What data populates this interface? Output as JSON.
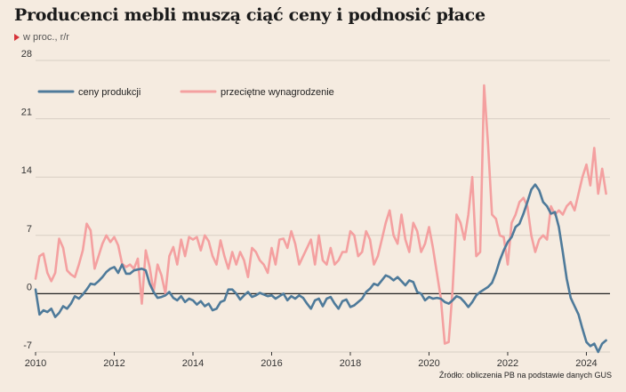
{
  "title": "Producenci mebli muszą ciąć ceny i podnosić płace",
  "subtitle": "w proc., r/r",
  "source": "Źródło: obliczenia PB na podstawie danych GUS",
  "colors": {
    "production": "#4e7a9a",
    "wages": "#f4a0a0",
    "zero_line": "#222222",
    "grid": "#d8cfc4",
    "marker": "#d6333a"
  },
  "chart_data": {
    "type": "line",
    "title": "Producenci mebli muszą ciąć ceny i podnosić płace",
    "subtitle": "w proc., r/r",
    "xlabel": "",
    "ylabel": "",
    "ylim": [
      -7,
      28
    ],
    "xlim": [
      2010,
      2024.6
    ],
    "y_ticks": [
      "28",
      "21",
      "14",
      "7",
      "0",
      "-7"
    ],
    "x_ticks": [
      "2010",
      "2012",
      "2014",
      "2016",
      "2018",
      "2020",
      "2022",
      "2024"
    ],
    "legend_position": "top-left",
    "grid": "horizontal",
    "series": [
      {
        "name": "ceny produkcji",
        "points": [
          [
            2010.0,
            0.5
          ],
          [
            2010.1,
            -2.5
          ],
          [
            2010.2,
            -2
          ],
          [
            2010.3,
            -2.2
          ],
          [
            2010.4,
            -1.8
          ],
          [
            2010.5,
            -2.8
          ],
          [
            2010.6,
            -2.3
          ],
          [
            2010.7,
            -1.5
          ],
          [
            2010.8,
            -1.8
          ],
          [
            2010.9,
            -1.2
          ],
          [
            2011.0,
            -0.3
          ],
          [
            2011.1,
            -0.6
          ],
          [
            2011.2,
            -0.1
          ],
          [
            2011.3,
            0.5
          ],
          [
            2011.4,
            1.2
          ],
          [
            2011.5,
            1.1
          ],
          [
            2011.6,
            1.5
          ],
          [
            2011.7,
            2.0
          ],
          [
            2011.8,
            2.6
          ],
          [
            2011.9,
            3.0
          ],
          [
            2012.0,
            3.2
          ],
          [
            2012.1,
            2.5
          ],
          [
            2012.2,
            3.5
          ],
          [
            2012.3,
            2.4
          ],
          [
            2012.4,
            2.4
          ],
          [
            2012.5,
            2.8
          ],
          [
            2012.6,
            2.9
          ],
          [
            2012.7,
            3.0
          ],
          [
            2012.8,
            2.8
          ],
          [
            2012.9,
            1.2
          ],
          [
            2013.0,
            0.2
          ],
          [
            2013.1,
            -0.5
          ],
          [
            2013.2,
            -0.4
          ],
          [
            2013.3,
            -0.2
          ],
          [
            2013.4,
            0.2
          ],
          [
            2013.5,
            -0.5
          ],
          [
            2013.6,
            -0.8
          ],
          [
            2013.7,
            -0.3
          ],
          [
            2013.8,
            -1.0
          ],
          [
            2013.9,
            -0.6
          ],
          [
            2014.0,
            -0.8
          ],
          [
            2014.1,
            -1.3
          ],
          [
            2014.2,
            -0.9
          ],
          [
            2014.3,
            -1.5
          ],
          [
            2014.4,
            -1.2
          ],
          [
            2014.5,
            -2.0
          ],
          [
            2014.6,
            -1.8
          ],
          [
            2014.7,
            -1.0
          ],
          [
            2014.8,
            -0.8
          ],
          [
            2014.9,
            0.5
          ],
          [
            2015.0,
            0.5
          ],
          [
            2015.1,
            0.0
          ],
          [
            2015.2,
            -0.7
          ],
          [
            2015.3,
            -0.2
          ],
          [
            2015.4,
            0.2
          ],
          [
            2015.5,
            -0.4
          ],
          [
            2015.6,
            -0.2
          ],
          [
            2015.7,
            0.1
          ],
          [
            2015.8,
            -0.1
          ],
          [
            2015.9,
            -0.3
          ],
          [
            2016.0,
            -0.2
          ],
          [
            2016.1,
            -0.6
          ],
          [
            2016.2,
            -0.3
          ],
          [
            2016.3,
            0.0
          ],
          [
            2016.4,
            -0.8
          ],
          [
            2016.5,
            -0.3
          ],
          [
            2016.6,
            -0.6
          ],
          [
            2016.7,
            -0.2
          ],
          [
            2016.8,
            -0.5
          ],
          [
            2016.9,
            -1.2
          ],
          [
            2017.0,
            -1.8
          ],
          [
            2017.1,
            -0.8
          ],
          [
            2017.2,
            -0.6
          ],
          [
            2017.3,
            -1.5
          ],
          [
            2017.4,
            -0.6
          ],
          [
            2017.5,
            -0.4
          ],
          [
            2017.6,
            -1.2
          ],
          [
            2017.7,
            -1.8
          ],
          [
            2017.8,
            -0.9
          ],
          [
            2017.9,
            -0.7
          ],
          [
            2018.0,
            -1.6
          ],
          [
            2018.1,
            -1.4
          ],
          [
            2018.2,
            -1.0
          ],
          [
            2018.3,
            -0.6
          ],
          [
            2018.4,
            0.2
          ],
          [
            2018.5,
            0.6
          ],
          [
            2018.6,
            1.2
          ],
          [
            2018.7,
            1.0
          ],
          [
            2018.8,
            1.6
          ],
          [
            2018.9,
            2.2
          ],
          [
            2019.0,
            2.0
          ],
          [
            2019.1,
            1.6
          ],
          [
            2019.2,
            2.0
          ],
          [
            2019.3,
            1.5
          ],
          [
            2019.4,
            1.0
          ],
          [
            2019.5,
            1.6
          ],
          [
            2019.6,
            1.4
          ],
          [
            2019.7,
            0.2
          ],
          [
            2019.8,
            0.0
          ],
          [
            2019.9,
            -0.8
          ],
          [
            2020.0,
            -0.4
          ],
          [
            2020.1,
            -0.6
          ],
          [
            2020.2,
            -0.5
          ],
          [
            2020.3,
            -0.6
          ],
          [
            2020.4,
            -1.0
          ],
          [
            2020.5,
            -1.2
          ],
          [
            2020.6,
            -0.8
          ],
          [
            2020.7,
            -0.3
          ],
          [
            2020.8,
            -0.5
          ],
          [
            2020.9,
            -1.0
          ],
          [
            2021.0,
            -1.6
          ],
          [
            2021.1,
            -1.0
          ],
          [
            2021.2,
            -0.2
          ],
          [
            2021.3,
            0.2
          ],
          [
            2021.4,
            0.5
          ],
          [
            2021.5,
            0.8
          ],
          [
            2021.6,
            1.3
          ],
          [
            2021.7,
            2.5
          ],
          [
            2021.8,
            4.0
          ],
          [
            2021.9,
            5.2
          ],
          [
            2022.0,
            6.2
          ],
          [
            2022.1,
            6.8
          ],
          [
            2022.2,
            8.0
          ],
          [
            2022.3,
            8.4
          ],
          [
            2022.4,
            9.6
          ],
          [
            2022.5,
            11.0
          ],
          [
            2022.6,
            12.5
          ],
          [
            2022.7,
            13.1
          ],
          [
            2022.8,
            12.4
          ],
          [
            2022.9,
            11.0
          ],
          [
            2023.0,
            10.5
          ],
          [
            2023.1,
            9.6
          ],
          [
            2023.2,
            9.8
          ],
          [
            2023.3,
            8.0
          ],
          [
            2023.4,
            5.0
          ],
          [
            2023.5,
            1.8
          ],
          [
            2023.6,
            -0.5
          ],
          [
            2023.7,
            -1.5
          ],
          [
            2023.8,
            -2.5
          ],
          [
            2023.9,
            -4.2
          ],
          [
            2024.0,
            -5.8
          ],
          [
            2024.1,
            -6.3
          ],
          [
            2024.2,
            -6.0
          ],
          [
            2024.3,
            -7.0
          ],
          [
            2024.4,
            -6.0
          ],
          [
            2024.5,
            -5.6
          ]
        ]
      },
      {
        "name": "przeciętne wynagrodzenie",
        "points": [
          [
            2010.0,
            1.8
          ],
          [
            2010.1,
            4.5
          ],
          [
            2010.2,
            4.8
          ],
          [
            2010.3,
            2.5
          ],
          [
            2010.4,
            1.5
          ],
          [
            2010.5,
            2.5
          ],
          [
            2010.6,
            6.6
          ],
          [
            2010.7,
            5.5
          ],
          [
            2010.8,
            2.8
          ],
          [
            2010.9,
            2.3
          ],
          [
            2011.0,
            2.0
          ],
          [
            2011.1,
            3.5
          ],
          [
            2011.2,
            5.2
          ],
          [
            2011.3,
            8.4
          ],
          [
            2011.4,
            7.6
          ],
          [
            2011.5,
            3.0
          ],
          [
            2011.6,
            4.5
          ],
          [
            2011.7,
            6.0
          ],
          [
            2011.8,
            7.0
          ],
          [
            2011.9,
            6.2
          ],
          [
            2012.0,
            6.8
          ],
          [
            2012.1,
            5.8
          ],
          [
            2012.2,
            3.6
          ],
          [
            2012.3,
            3.2
          ],
          [
            2012.4,
            3.5
          ],
          [
            2012.5,
            3.0
          ],
          [
            2012.6,
            4.2
          ],
          [
            2012.7,
            -1.2
          ],
          [
            2012.8,
            5.2
          ],
          [
            2012.9,
            3.2
          ],
          [
            2013.0,
            0.2
          ],
          [
            2013.1,
            3.5
          ],
          [
            2013.2,
            2.2
          ],
          [
            2013.3,
            0.0
          ],
          [
            2013.4,
            4.5
          ],
          [
            2013.5,
            5.6
          ],
          [
            2013.6,
            3.5
          ],
          [
            2013.7,
            6.5
          ],
          [
            2013.8,
            4.5
          ],
          [
            2013.9,
            6.8
          ],
          [
            2014.0,
            6.5
          ],
          [
            2014.1,
            6.8
          ],
          [
            2014.2,
            5.2
          ],
          [
            2014.3,
            7.0
          ],
          [
            2014.4,
            6.3
          ],
          [
            2014.5,
            4.5
          ],
          [
            2014.6,
            3.5
          ],
          [
            2014.7,
            6.4
          ],
          [
            2014.8,
            4.5
          ],
          [
            2014.9,
            3.0
          ],
          [
            2015.0,
            5.0
          ],
          [
            2015.1,
            3.5
          ],
          [
            2015.2,
            5.0
          ],
          [
            2015.3,
            4.0
          ],
          [
            2015.4,
            2.0
          ],
          [
            2015.5,
            5.5
          ],
          [
            2015.6,
            5.0
          ],
          [
            2015.7,
            4.0
          ],
          [
            2015.8,
            3.5
          ],
          [
            2015.9,
            2.5
          ],
          [
            2016.0,
            5.5
          ],
          [
            2016.1,
            3.5
          ],
          [
            2016.2,
            6.5
          ],
          [
            2016.3,
            6.6
          ],
          [
            2016.4,
            5.5
          ],
          [
            2016.5,
            7.5
          ],
          [
            2016.6,
            6.0
          ],
          [
            2016.7,
            3.5
          ],
          [
            2016.8,
            4.5
          ],
          [
            2016.9,
            5.5
          ],
          [
            2017.0,
            6.5
          ],
          [
            2017.1,
            3.5
          ],
          [
            2017.2,
            7.0
          ],
          [
            2017.3,
            4.0
          ],
          [
            2017.4,
            3.5
          ],
          [
            2017.5,
            5.5
          ],
          [
            2017.6,
            3.5
          ],
          [
            2017.7,
            4.0
          ],
          [
            2017.8,
            5.0
          ],
          [
            2017.9,
            5.0
          ],
          [
            2018.0,
            7.5
          ],
          [
            2018.1,
            7.0
          ],
          [
            2018.2,
            4.5
          ],
          [
            2018.3,
            5.0
          ],
          [
            2018.4,
            7.5
          ],
          [
            2018.5,
            6.5
          ],
          [
            2018.6,
            3.5
          ],
          [
            2018.7,
            4.5
          ],
          [
            2018.8,
            6.5
          ],
          [
            2018.9,
            8.5
          ],
          [
            2019.0,
            10.0
          ],
          [
            2019.1,
            7.0
          ],
          [
            2019.2,
            6.0
          ],
          [
            2019.3,
            9.5
          ],
          [
            2019.4,
            6.5
          ],
          [
            2019.5,
            5.0
          ],
          [
            2019.6,
            8.5
          ],
          [
            2019.7,
            7.5
          ],
          [
            2019.8,
            5.0
          ],
          [
            2019.9,
            6.0
          ],
          [
            2020.0,
            8.0
          ],
          [
            2020.1,
            5.5
          ],
          [
            2020.2,
            2.5
          ],
          [
            2020.3,
            -0.5
          ],
          [
            2020.4,
            -6.0
          ],
          [
            2020.5,
            -5.8
          ],
          [
            2020.6,
            0.5
          ],
          [
            2020.7,
            9.5
          ],
          [
            2020.8,
            8.5
          ],
          [
            2020.9,
            6.5
          ],
          [
            2021.0,
            9.5
          ],
          [
            2021.1,
            14.0
          ],
          [
            2021.2,
            4.5
          ],
          [
            2021.3,
            5.0
          ],
          [
            2021.4,
            25.0
          ],
          [
            2021.5,
            18.0
          ],
          [
            2021.6,
            9.5
          ],
          [
            2021.7,
            9.0
          ],
          [
            2021.8,
            7.0
          ],
          [
            2021.9,
            6.8
          ],
          [
            2022.0,
            3.5
          ],
          [
            2022.1,
            8.5
          ],
          [
            2022.2,
            9.5
          ],
          [
            2022.3,
            11.0
          ],
          [
            2022.4,
            11.5
          ],
          [
            2022.5,
            10.5
          ],
          [
            2022.6,
            7.0
          ],
          [
            2022.7,
            5.0
          ],
          [
            2022.8,
            6.5
          ],
          [
            2022.9,
            7.0
          ],
          [
            2023.0,
            6.5
          ],
          [
            2023.1,
            10.5
          ],
          [
            2023.2,
            9.5
          ],
          [
            2023.3,
            10.0
          ],
          [
            2023.4,
            9.5
          ],
          [
            2023.5,
            10.5
          ],
          [
            2023.6,
            11.0
          ],
          [
            2023.7,
            10.0
          ],
          [
            2023.8,
            12.0
          ],
          [
            2023.9,
            14.0
          ],
          [
            2024.0,
            15.5
          ],
          [
            2024.1,
            13.0
          ],
          [
            2024.2,
            17.5
          ],
          [
            2024.3,
            12.0
          ],
          [
            2024.4,
            15.0
          ],
          [
            2024.5,
            12.0
          ]
        ]
      }
    ]
  }
}
